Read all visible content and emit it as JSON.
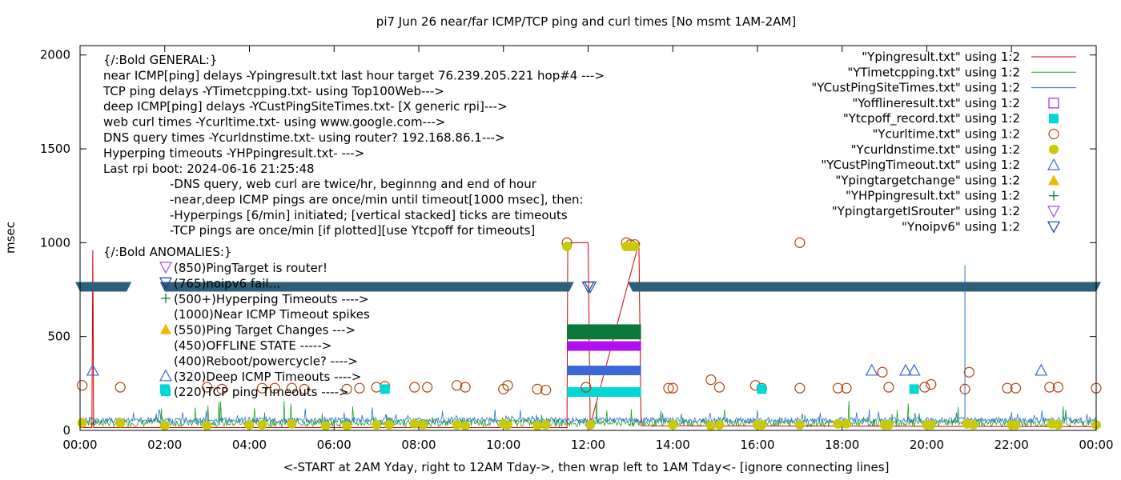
{
  "chart_data": {
    "type": "line",
    "title": "pi7 Jun 26  near/far ICMP/TCP ping and curl times [No msmt 1AM-2AM]",
    "xlabel": "<-START at 2AM Yday, right to 12AM Tday->, then wrap left to 1AM Tday<- [ignore connecting lines]",
    "ylabel": "msec",
    "xlim": [
      0,
      24
    ],
    "ylim": [
      0,
      2050
    ],
    "yticks": [
      0,
      500,
      1000,
      1500,
      2000
    ],
    "ytick_labels": [
      "0",
      "500",
      "1000",
      "1500",
      "2000"
    ],
    "xticks": [
      0,
      2,
      4,
      6,
      8,
      10,
      12,
      14,
      16,
      18,
      20,
      22,
      24
    ],
    "xtick_labels": [
      "00:00",
      "02:00",
      "04:00",
      "06:00",
      "08:00",
      "10:00",
      "12:00",
      "14:00",
      "16:00",
      "18:00",
      "20:00",
      "22:00",
      "00:00"
    ],
    "legend": [
      {
        "label": "\"Ypingresult.txt\" using 1:2",
        "marker": "line",
        "color": "#cc0000"
      },
      {
        "label": "\"YTimetcpping.txt\" using 1:2",
        "marker": "line",
        "color": "#1aa11a"
      },
      {
        "label": "\"YCustPingSiteTimes.txt\" using 1:2",
        "marker": "line",
        "color": "#2a6fd6"
      },
      {
        "label": "\"Yofflineresult.txt\" using 1:2",
        "marker": "square-open",
        "color": "#a020f0"
      },
      {
        "label": "\"Ytcpoff_record.txt\" using 1:2",
        "marker": "square-filled",
        "color": "#00d8d8"
      },
      {
        "label": "\"Ycurltime.txt\" using 1:2",
        "marker": "circle-open",
        "color": "#b5410b"
      },
      {
        "label": "\"Ycurldnstime.txt\" using 1:2",
        "marker": "circle-filled",
        "color": "#c9c90a"
      },
      {
        "label": "\"YCustPingTimeout.txt\" using 1:2",
        "marker": "triangle-up-open",
        "color": "#3a68d8"
      },
      {
        "label": "\"Ypingtargetchange\" using 1:2",
        "marker": "triangle-up-filled",
        "color": "#f0b800"
      },
      {
        "label": "\"YHPpingresult.txt\" using 1:2",
        "marker": "plus",
        "color": "#006b2e"
      },
      {
        "label": "\"YpingtargetISrouter\" using 1:2",
        "marker": "triangle-down-open",
        "color": "#a050e0"
      },
      {
        "label": "\"Ynoipv6\" using 1:2",
        "marker": "triangle-down-open",
        "color": "#1a3f99"
      }
    ],
    "annotations_general": [
      "{/:Bold GENERAL:}",
      "near ICMP[ping] delays -Ypingresult.txt last hour target 76.239.205.221 hop#4 --->",
      "TCP ping delays -YTimetcpping.txt- using Top100Web--->",
      "deep ICMP[ping] delays -YCustPingSiteTimes.txt- [X generic rpi]--->",
      "web curl times -Ycurltime.txt- using www.google.com--->",
      "DNS query times -Ycurldnstime.txt- using router? 192.168.86.1--->",
      "Hyperping timeouts -YHPpingresult.txt- --->",
      "Last rpi boot: 2024-06-16 21:25:48"
    ],
    "annotations_notes": [
      "-DNS query, web curl are twice/hr, beginnng and end of hour",
      "-near,deep ICMP pings are once/min until timeout[1000 msec], then:",
      "  -Hyperpings [6/min] initiated; [vertical stacked] ticks are timeouts",
      "-TCP pings are once/min [if plotted][use Ytcpoff for timeouts]"
    ],
    "annotations_anomalies_title": "{/:Bold ANOMALIES:}",
    "annotations_anomalies": [
      {
        "text": "(850)PingTarget is router!",
        "marker": "triangle-down-open",
        "color": "#a050e0",
        "y": 850
      },
      {
        "text": "(765)noipv6 fail... ",
        "marker": "triangle-down-open",
        "color": "#1a3f99",
        "y": 765
      },
      {
        "text": "(500+)Hyperping Timeouts ---->",
        "marker": "plus",
        "color": "#006b2e",
        "y": 690
      },
      {
        "text": "(1000)Near ICMP Timeout spikes",
        "marker": "",
        "color": "",
        "y": 620
      },
      {
        "text": "(550)Ping Target Changes --->",
        "marker": "triangle-up-filled",
        "color": "#f0b800",
        "y": 550
      },
      {
        "text": "(450)OFFLINE STATE ----->",
        "marker": "",
        "color": "",
        "y": 480
      },
      {
        "text": "(400)Reboot/powercycle? ---->",
        "marker": "",
        "color": "",
        "y": 410
      },
      {
        "text": "(320)Deep ICMP Timeouts ---->",
        "marker": "triangle-up-open",
        "color": "#3a68d8",
        "y": 340
      },
      {
        "text": "(220)TCP ping Timeouts ---->",
        "marker": "square-filled",
        "color": "#00d8d8",
        "y": 270
      }
    ],
    "series": [
      {
        "name": "Ypingresult.txt",
        "style": "line",
        "color": "#cc0000",
        "x": [
          0,
          0.28,
          0.3,
          0.32,
          0.5,
          11.5,
          11.52,
          11.55,
          12.0,
          12.05,
          13.2,
          13.25,
          24
        ],
        "y": [
          15,
          15,
          960,
          15,
          15,
          15,
          1000,
          1000,
          1000,
          25,
          1000,
          25,
          20
        ]
      },
      {
        "name": "YTimetcpping.txt",
        "style": "line",
        "color": "#1aa11a",
        "baseline": 40
      },
      {
        "name": "YCustPingSiteTimes.txt",
        "style": "line",
        "color": "#2a6fd6",
        "baseline": 55
      },
      {
        "name": "Ytcpoff_record.txt",
        "style": "square-filled",
        "color": "#00d8d8",
        "points": [
          [
            2.0,
            220
          ],
          [
            7.2,
            220
          ],
          [
            16.1,
            220
          ],
          [
            19.7,
            220
          ]
        ]
      },
      {
        "name": "Ycurltime.txt",
        "style": "circle-open",
        "color": "#b5410b",
        "points": [
          [
            0.05,
            240
          ],
          [
            0.95,
            230
          ],
          [
            3.0,
            230
          ],
          [
            3.35,
            220
          ],
          [
            4.3,
            225
          ],
          [
            4.6,
            225
          ],
          [
            5.0,
            225
          ],
          [
            5.3,
            220
          ],
          [
            6.3,
            220
          ],
          [
            6.6,
            225
          ],
          [
            7.0,
            230
          ],
          [
            7.2,
            235
          ],
          [
            7.9,
            230
          ],
          [
            8.2,
            230
          ],
          [
            8.9,
            240
          ],
          [
            9.1,
            230
          ],
          [
            10.0,
            220
          ],
          [
            10.1,
            240
          ],
          [
            10.8,
            220
          ],
          [
            11.0,
            215
          ],
          [
            11.5,
            1000
          ],
          [
            11.95,
            230
          ],
          [
            12.9,
            1000
          ],
          [
            13.0,
            990
          ],
          [
            13.1,
            990
          ],
          [
            13.9,
            225
          ],
          [
            14.0,
            225
          ],
          [
            14.9,
            270
          ],
          [
            15.1,
            230
          ],
          [
            15.95,
            240
          ],
          [
            16.1,
            225
          ],
          [
            17.0,
            1000
          ],
          [
            17.0,
            225
          ],
          [
            17.9,
            225
          ],
          [
            18.1,
            225
          ],
          [
            18.95,
            310
          ],
          [
            19.1,
            230
          ],
          [
            19.95,
            230
          ],
          [
            20.1,
            245
          ],
          [
            20.9,
            220
          ],
          [
            21.0,
            310
          ],
          [
            21.9,
            225
          ],
          [
            22.1,
            225
          ],
          [
            22.9,
            230
          ],
          [
            23.1,
            230
          ],
          [
            24.0,
            225
          ]
        ]
      },
      {
        "name": "Ycurldnstime.txt",
        "style": "circle-filled",
        "color": "#c9c90a",
        "points": [
          [
            0.05,
            40
          ],
          [
            0.95,
            40
          ],
          [
            2.0,
            25
          ],
          [
            3.0,
            25
          ],
          [
            4.0,
            30
          ],
          [
            4.3,
            30
          ],
          [
            5.0,
            35
          ],
          [
            5.8,
            25
          ],
          [
            6.3,
            25
          ],
          [
            7.0,
            30
          ],
          [
            7.3,
            30
          ],
          [
            7.9,
            35
          ],
          [
            8.1,
            30
          ],
          [
            8.9,
            30
          ],
          [
            9.1,
            25
          ],
          [
            10.0,
            35
          ],
          [
            10.1,
            30
          ],
          [
            10.8,
            25
          ],
          [
            11.0,
            30
          ],
          [
            11.5,
            980
          ],
          [
            12.05,
            30
          ],
          [
            12.9,
            980
          ],
          [
            13.0,
            980
          ],
          [
            13.1,
            980
          ],
          [
            14.0,
            30
          ],
          [
            14.9,
            25
          ],
          [
            15.1,
            30
          ],
          [
            16.0,
            30
          ],
          [
            16.1,
            30
          ],
          [
            17.0,
            30
          ],
          [
            17.9,
            35
          ],
          [
            18.1,
            35
          ],
          [
            19.0,
            30
          ],
          [
            19.1,
            30
          ],
          [
            20.0,
            30
          ],
          [
            20.1,
            30
          ],
          [
            20.95,
            35
          ],
          [
            21.1,
            30
          ],
          [
            22.0,
            30
          ],
          [
            22.1,
            30
          ],
          [
            22.95,
            35
          ],
          [
            23.1,
            30
          ],
          [
            24.0,
            30
          ]
        ]
      },
      {
        "name": "YCustPingTimeout.txt",
        "style": "triangle-up-open",
        "color": "#3a68d8",
        "points": [
          [
            0.3,
            320
          ],
          [
            18.7,
            320
          ],
          [
            19.5,
            320
          ],
          [
            19.7,
            320
          ],
          [
            22.7,
            320
          ]
        ]
      },
      {
        "name": "Ynoipv6",
        "style": "triangle-down-open",
        "color": "#1a3f99",
        "y": 765,
        "points": [
          [
            12.0,
            765
          ],
          [
            12.05,
            765
          ]
        ],
        "bands": [
          [
            0.0,
            1.1
          ],
          [
            2.0,
            11.55
          ],
          [
            12.1,
            12.05
          ],
          [
            13.05,
            24.0
          ]
        ]
      }
    ],
    "offline_block": {
      "x_start": 11.5,
      "x_end": 13.25,
      "hyperping_band": [
        500,
        600
      ],
      "offline_band": [
        450,
        450
      ],
      "deep_icmp_band": [
        320,
        320
      ],
      "tcp_band": [
        220,
        220
      ]
    }
  }
}
